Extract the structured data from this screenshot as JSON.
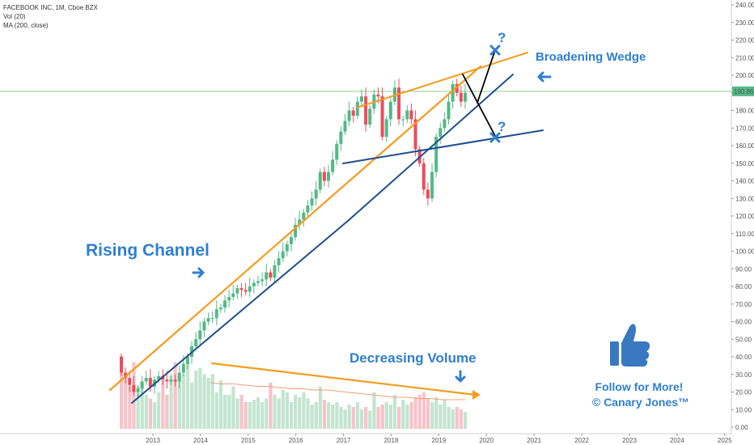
{
  "legend": {
    "symbol": "FACEBOOK INC, 1M, Cboe BZX",
    "vol": "Vol (20)",
    "ma": "MA (200, close)"
  },
  "chart_data": {
    "type": "candlestick",
    "x_ticks": [
      "2013",
      "2014",
      "2015",
      "2016",
      "2017",
      "2018",
      "2019",
      "2020",
      "2021",
      "2022",
      "2023",
      "2024",
      "2025"
    ],
    "y_ticks": [
      "240.00",
      "230.00",
      "220.00",
      "210.00",
      "200.00",
      "190.00",
      "180.00",
      "170.00",
      "160.00",
      "150.00",
      "140.00",
      "130.00",
      "120.00",
      "110.00",
      "100.00",
      "90.00",
      "80.00",
      "70.00",
      "60.00",
      "50.00",
      "40.00",
      "30.00",
      "20.00",
      "10.00",
      "0.00"
    ],
    "ylim": [
      0,
      240
    ],
    "last_price": "190.86",
    "last_price_value": 190.86,
    "colors": {
      "up": "#53b987",
      "down": "#eb4d5c",
      "orange": "#f39c1f",
      "navy": "#1f4e8c",
      "blue_text": "#2f7fd0"
    },
    "close": [
      31,
      28,
      24,
      20,
      22,
      26,
      28,
      23,
      27,
      29,
      27,
      26,
      27,
      26,
      31,
      36,
      40,
      46,
      50,
      55,
      60,
      62,
      62,
      67,
      68,
      72,
      74,
      76,
      79,
      78,
      77,
      80,
      82,
      83,
      84,
      88,
      85,
      92,
      96,
      100,
      104,
      108,
      115,
      118,
      122,
      126,
      130,
      135,
      145,
      140,
      145,
      152,
      161,
      168,
      174,
      180,
      177,
      185,
      188,
      172,
      181,
      189,
      188,
      165,
      175,
      185,
      193,
      175,
      175,
      180,
      175,
      158,
      150,
      135,
      130,
      145,
      165,
      170,
      175,
      185,
      195,
      190,
      185,
      190
    ],
    "volume": [
      60,
      45,
      35,
      55,
      35,
      38,
      28,
      25,
      22,
      30,
      40,
      28,
      45,
      55,
      40,
      45,
      55,
      38,
      48,
      50,
      45,
      42,
      45,
      30,
      40,
      28,
      28,
      35,
      25,
      28,
      22,
      22,
      24,
      26,
      22,
      25,
      38,
      28,
      25,
      32,
      30,
      22,
      28,
      26,
      30,
      25,
      20,
      22,
      35,
      24,
      22,
      20,
      22,
      18,
      16,
      20,
      18,
      22,
      16,
      18,
      15,
      30,
      18,
      20,
      22,
      20,
      28,
      18,
      24,
      20,
      22,
      26,
      28,
      30,
      25,
      22,
      26,
      20,
      24,
      18,
      16,
      18,
      16,
      14
    ],
    "volume_ma": [
      38,
      37,
      37,
      36,
      35,
      35,
      34,
      33,
      33,
      32,
      32,
      31,
      30,
      29,
      28,
      27,
      26,
      26,
      25,
      25,
      24,
      24,
      24
    ],
    "annotations": {
      "rising_channel": "Rising Channel",
      "broadening_wedge": "Broadening Wedge",
      "decreasing_volume": "Decreasing Volume",
      "question_mark": "?",
      "follow_line1": "Follow for More!",
      "follow_line2": "© Canary Jones™"
    }
  }
}
